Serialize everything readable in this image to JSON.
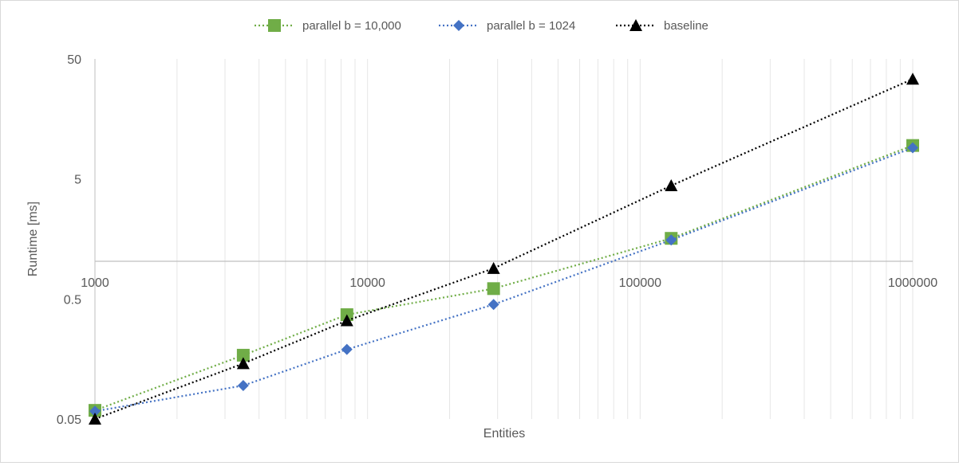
{
  "chart_data": {
    "type": "line",
    "title": "",
    "xlabel": "Entities",
    "ylabel": "Runtime [ms]",
    "x_scale": "log",
    "y_scale": "log",
    "xlim": [
      1000,
      1000000
    ],
    "ylim": [
      0.05,
      50
    ],
    "x_tick_labels": [
      "1000",
      "10000",
      "100000",
      "1000000"
    ],
    "y_tick_labels": [
      "0.05",
      "0.5",
      "5",
      "50"
    ],
    "x_tick_values": [
      1000,
      10000,
      100000,
      1000000
    ],
    "y_tick_values": [
      0.05,
      0.5,
      5,
      50
    ],
    "grid": "vertical minor gridlines",
    "legend_position": "top",
    "x": [
      1000,
      3500,
      8400,
      29000,
      130000,
      1000000
    ],
    "series": [
      {
        "name": "parallel b = 10,000",
        "color": "#70ad47",
        "marker": "square",
        "line_style": "dotted",
        "values": [
          0.059,
          0.17,
          0.37,
          0.61,
          1.6,
          9.5
        ]
      },
      {
        "name": "parallel b = 1024",
        "color": "#4472c4",
        "marker": "diamond",
        "line_style": "dotted",
        "values": [
          0.058,
          0.095,
          0.19,
          0.45,
          1.55,
          9.1
        ]
      },
      {
        "name": "baseline",
        "color": "#000000",
        "marker": "triangle",
        "line_style": "dotted",
        "values": [
          0.05,
          0.145,
          0.33,
          0.9,
          4.4,
          34
        ]
      }
    ]
  }
}
